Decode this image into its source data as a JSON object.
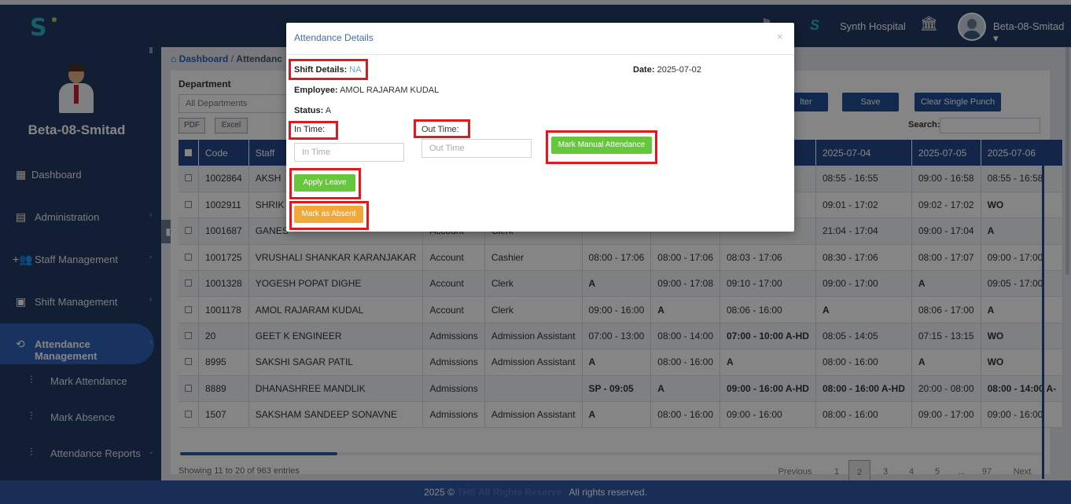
{
  "header": {
    "hospital_name": "Synth Hospital",
    "user_name": "Beta-08-Smitad",
    "logo_letter": "S"
  },
  "sidebar": {
    "profile_name": "Beta-08-Smitad",
    "items": [
      {
        "label": "Dashboard"
      },
      {
        "label": "Administration"
      },
      {
        "label": "Staff Management"
      },
      {
        "label": "Shift Management"
      },
      {
        "label": "Attendance Management"
      }
    ],
    "sub_items": [
      {
        "label": "Mark Attendance"
      },
      {
        "label": "Mark Absence"
      },
      {
        "label": "Attendance Reports"
      }
    ]
  },
  "breadcrumb": {
    "home": "Dashboard",
    "current": "Attendanc"
  },
  "filters": {
    "department_label": "Department",
    "department_value": "All Departments",
    "filter_label": "lter",
    "save_label": "Save",
    "clear_label": "Clear Single Punch",
    "pdf_label": "PDF",
    "excel_label": "Excel",
    "search_label": "Search:"
  },
  "table": {
    "headers": [
      "Code",
      "Staff",
      "",
      "",
      "",
      "",
      "",
      "2025-07-04",
      "2025-07-05",
      "2025-07-06"
    ],
    "rows": [
      {
        "code": "1002864",
        "name": "AKSH",
        "dept": "",
        "desig": "",
        "d1": "",
        "d2": "",
        "d3": "",
        "d4": "08:55 - 16:55",
        "d5": "09:00 - 16:58",
        "d6": "08:55 - 16:58"
      },
      {
        "code": "1002911",
        "name": "SHRIK",
        "dept": "",
        "desig": "",
        "d1": "",
        "d2": "",
        "d3": "",
        "d4": "09:01 - 17:02",
        "d5": "09:02 - 17:02",
        "d6": "WO"
      },
      {
        "code": "1001687",
        "name": "GANES",
        "dept": "Account",
        "desig": "Clerk",
        "d1": "",
        "d2": "",
        "d3": "",
        "d4": "21:04 - 17:04",
        "d5": "09:00 - 17:04",
        "d6": "A"
      },
      {
        "code": "1001725",
        "name": "VRUSHALI SHANKAR KARANJAKAR",
        "dept": "Account",
        "desig": "Cashier",
        "d1": "08:00 - 17:06",
        "d2": "08:00 - 17:06",
        "d3": "08:03 - 17:06",
        "d4": "08:30 - 17:06",
        "d5": "08:00 - 17:07",
        "d6": "09:00 - 17:00"
      },
      {
        "code": "1001328",
        "name": "YOGESH POPAT DIGHE",
        "dept": "Account",
        "desig": "Clerk",
        "d1": "A",
        "d2": "09:00 - 17:08",
        "d3": "09:10 - 17:00",
        "d4": "09:00 - 17:00",
        "d5": "A",
        "d6": "09:05 - 17:00"
      },
      {
        "code": "1001178",
        "name": "AMOL RAJARAM KUDAL",
        "dept": "Account",
        "desig": "Clerk",
        "d1": "09:00 - 16:00",
        "d2": "A",
        "d3": "08:06 - 16:00",
        "d4": "A",
        "d5": "08:06 - 17:00",
        "d6": "A"
      },
      {
        "code": "20",
        "name": "GEET K ENGINEER",
        "dept": "Admissions",
        "desig": "Admission Assistant",
        "d1": "07:00 - 13:00",
        "d2": "08:00 - 14:00",
        "d3": "07:00 - 10:00 A-HD",
        "d4": "08:05 - 14:05",
        "d5": "07:15 - 13:15",
        "d6": "WO"
      },
      {
        "code": "8995",
        "name": "SAKSHI SAGAR PATIL",
        "dept": "Admissions",
        "desig": "Admission Assistant",
        "d1": "A",
        "d2": "08:00 - 16:00",
        "d3": "A",
        "d4": "08:00 - 16:00",
        "d5": "A",
        "d6": "WO"
      },
      {
        "code": "8889",
        "name": "DHANASHREE MANDLIK",
        "dept": "Admissions",
        "desig": "",
        "d1": "SP - 09:05",
        "d2": "A",
        "d3": "09:00 - 16:00 A-HD",
        "d4": "08:00 - 16:00 A-HD",
        "d5": "20:00 - 08:00",
        "d6": "08:00 - 14:00 A-"
      },
      {
        "code": "1507",
        "name": "SAKSHAM SANDEEP SONAVNE",
        "dept": "Admissions",
        "desig": "Admission Assistant",
        "d1": "A",
        "d2": "08:00 - 16:00",
        "d3": "09:00 - 16:00",
        "d4": "08:00 - 16:00",
        "d5": "09:00 - 17:00",
        "d6": "09:00 - 16:00"
      }
    ]
  },
  "footer_table": {
    "showing": "Showing 11 to 20 of 963 entries",
    "previous": "Previous",
    "pages": [
      "1",
      "2",
      "3",
      "4",
      "5",
      "...",
      "97"
    ],
    "next": "Next"
  },
  "footer": {
    "year": "2025 ©",
    "brand": "THS All Rights Reserve .",
    "rights": "All rights reserved."
  },
  "modal": {
    "title": "Attendance Details",
    "close": "×",
    "shift_label": "Shift Details:",
    "shift_value": "NA",
    "date_label": "Date:",
    "date_value": "2025-07-02",
    "employee_label": "Employee:",
    "employee_value": "AMOL RAJARAM KUDAL",
    "status_label": "Status:",
    "status_value": "A",
    "in_time_label": "In Time:",
    "in_time_placeholder": "In Time",
    "out_time_label": "Out Time:",
    "out_time_placeholder": "Out Time",
    "mark_manual_label": "Mark Manual Attendance",
    "apply_leave_label": "Apply Leave",
    "mark_absent_label": "Mark as Absent"
  }
}
